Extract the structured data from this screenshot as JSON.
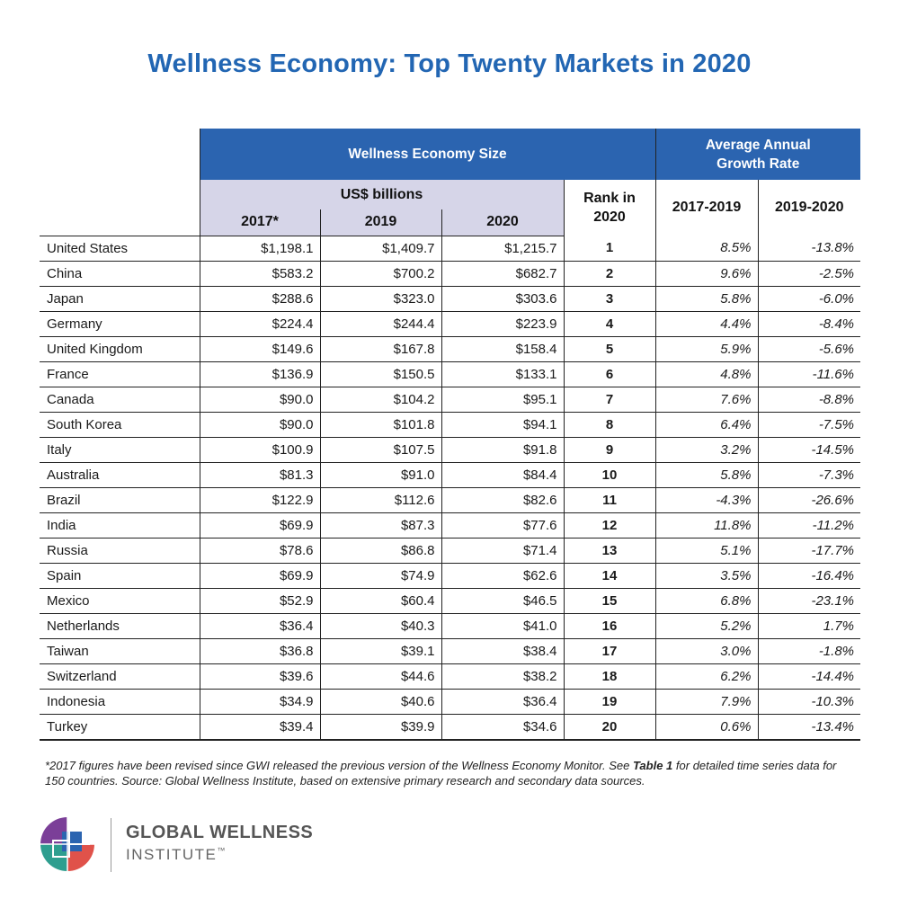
{
  "title": "Wellness Economy: Top Twenty Markets in 2020",
  "header": {
    "size_group": "Wellness Economy Size",
    "growth_group": "Average Annual Growth Rate",
    "usd_label": "US$ billions",
    "rank_label": "Rank in 2020",
    "col_2017": "2017*",
    "col_2019": "2019",
    "col_2020": "2020",
    "growth_1": "2017-2019",
    "growth_2": "2019-2020"
  },
  "rows": [
    {
      "country": "United States",
      "v2017": "$1,198.1",
      "v2019": "$1,409.7",
      "v2020": "$1,215.7",
      "rank": "1",
      "g1": "8.5%",
      "g2": "-13.8%"
    },
    {
      "country": "China",
      "v2017": "$583.2",
      "v2019": "$700.2",
      "v2020": "$682.7",
      "rank": "2",
      "g1": "9.6%",
      "g2": "-2.5%"
    },
    {
      "country": "Japan",
      "v2017": "$288.6",
      "v2019": "$323.0",
      "v2020": "$303.6",
      "rank": "3",
      "g1": "5.8%",
      "g2": "-6.0%"
    },
    {
      "country": "Germany",
      "v2017": "$224.4",
      "v2019": "$244.4",
      "v2020": "$223.9",
      "rank": "4",
      "g1": "4.4%",
      "g2": "-8.4%"
    },
    {
      "country": "United Kingdom",
      "v2017": "$149.6",
      "v2019": "$167.8",
      "v2020": "$158.4",
      "rank": "5",
      "g1": "5.9%",
      "g2": "-5.6%"
    },
    {
      "country": "France",
      "v2017": "$136.9",
      "v2019": "$150.5",
      "v2020": "$133.1",
      "rank": "6",
      "g1": "4.8%",
      "g2": "-11.6%"
    },
    {
      "country": "Canada",
      "v2017": "$90.0",
      "v2019": "$104.2",
      "v2020": "$95.1",
      "rank": "7",
      "g1": "7.6%",
      "g2": "-8.8%"
    },
    {
      "country": "South Korea",
      "v2017": "$90.0",
      "v2019": "$101.8",
      "v2020": "$94.1",
      "rank": "8",
      "g1": "6.4%",
      "g2": "-7.5%"
    },
    {
      "country": "Italy",
      "v2017": "$100.9",
      "v2019": "$107.5",
      "v2020": "$91.8",
      "rank": "9",
      "g1": "3.2%",
      "g2": "-14.5%"
    },
    {
      "country": "Australia",
      "v2017": "$81.3",
      "v2019": "$91.0",
      "v2020": "$84.4",
      "rank": "10",
      "g1": "5.8%",
      "g2": "-7.3%"
    },
    {
      "country": "Brazil",
      "v2017": "$122.9",
      "v2019": "$112.6",
      "v2020": "$82.6",
      "rank": "11",
      "g1": "-4.3%",
      "g2": "-26.6%"
    },
    {
      "country": "India",
      "v2017": "$69.9",
      "v2019": "$87.3",
      "v2020": "$77.6",
      "rank": "12",
      "g1": "11.8%",
      "g2": "-11.2%"
    },
    {
      "country": "Russia",
      "v2017": "$78.6",
      "v2019": "$86.8",
      "v2020": "$71.4",
      "rank": "13",
      "g1": "5.1%",
      "g2": "-17.7%"
    },
    {
      "country": "Spain",
      "v2017": "$69.9",
      "v2019": "$74.9",
      "v2020": "$62.6",
      "rank": "14",
      "g1": "3.5%",
      "g2": "-16.4%"
    },
    {
      "country": "Mexico",
      "v2017": "$52.9",
      "v2019": "$60.4",
      "v2020": "$46.5",
      "rank": "15",
      "g1": "6.8%",
      "g2": "-23.1%"
    },
    {
      "country": "Netherlands",
      "v2017": "$36.4",
      "v2019": "$40.3",
      "v2020": "$41.0",
      "rank": "16",
      "g1": "5.2%",
      "g2": "1.7%"
    },
    {
      "country": "Taiwan",
      "v2017": "$36.8",
      "v2019": "$39.1",
      "v2020": "$38.4",
      "rank": "17",
      "g1": "3.0%",
      "g2": "-1.8%"
    },
    {
      "country": "Switzerland",
      "v2017": "$39.6",
      "v2019": "$44.6",
      "v2020": "$38.2",
      "rank": "18",
      "g1": "6.2%",
      "g2": "-14.4%"
    },
    {
      "country": "Indonesia",
      "v2017": "$34.9",
      "v2019": "$40.6",
      "v2020": "$36.4",
      "rank": "19",
      "g1": "7.9%",
      "g2": "-10.3%"
    },
    {
      "country": "Turkey",
      "v2017": "$39.4",
      "v2019": "$39.9",
      "v2020": "$34.6",
      "rank": "20",
      "g1": "0.6%",
      "g2": "-13.4%"
    }
  ],
  "footnote": {
    "part1": "*2017 figures have been revised since GWI released the previous version of the Wellness Economy Monitor. See ",
    "bold": "Table 1",
    "part2": " for detailed time series data for 150 countries. Source: Global Wellness Institute, based on extensive primary research and secondary data sources."
  },
  "logo": {
    "line1": "GLOBAL WELLNESS",
    "line2": "INSTITUTE",
    "tm": "™",
    "colors": [
      "#7b3f98",
      "#2e9e8f",
      "#2b64b0",
      "#e0524a"
    ]
  }
}
